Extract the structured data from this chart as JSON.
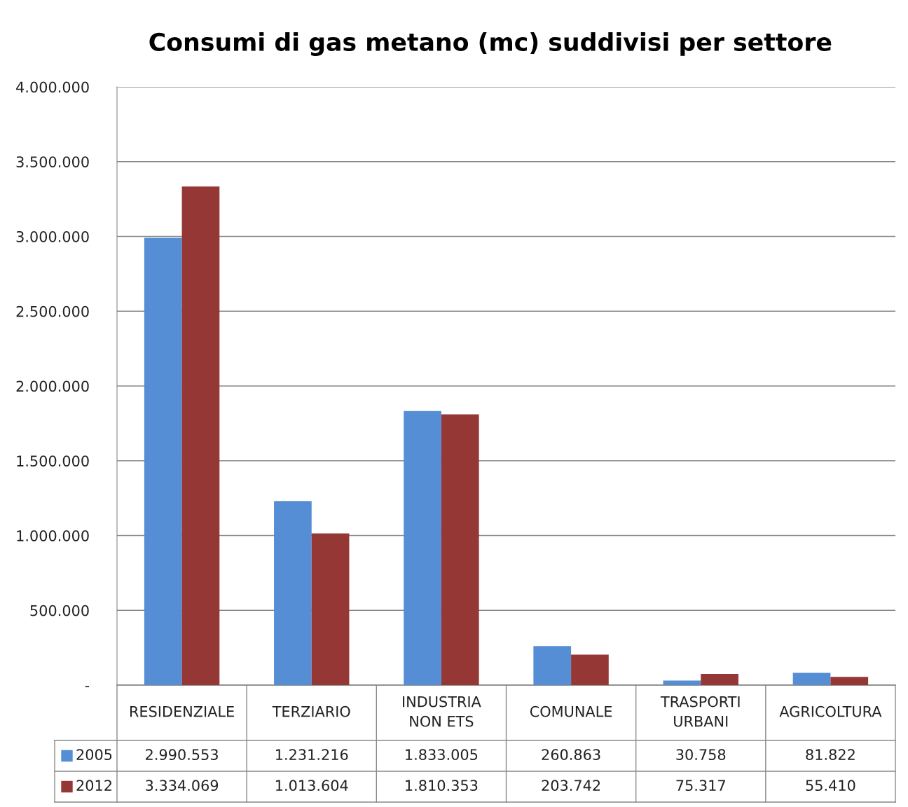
{
  "chart_data": {
    "type": "bar",
    "title": "Consumi di gas metano (mc) suddivisi per settore",
    "categories": [
      "RESIDENZIALE",
      "TERZIARIO",
      "INDUSTRIA\nNON ETS",
      "COMUNALE",
      "TRASPORTI\nURBANI",
      "AGRICOLTURA"
    ],
    "series": [
      {
        "name": "2005",
        "color": "#558ed5",
        "values": [
          2990553,
          1231216,
          1833005,
          260863,
          30758,
          81822
        ],
        "value_labels": [
          "2.990.553",
          "1.231.216",
          "1.833.005",
          "260.863",
          "30.758",
          "81.822"
        ]
      },
      {
        "name": "2012",
        "color": "#953735",
        "values": [
          3334069,
          1013604,
          1810353,
          203742,
          75317,
          55410
        ],
        "value_labels": [
          "3.334.069",
          "1.013.604",
          "1.810.353",
          "203.742",
          "75.317",
          "55.410"
        ]
      }
    ],
    "ylim": [
      0,
      4000000
    ],
    "yticks": [
      {
        "value": 0,
        "label": "-"
      },
      {
        "value": 500000,
        "label": "500.000"
      },
      {
        "value": 1000000,
        "label": "1.000.000"
      },
      {
        "value": 1500000,
        "label": "1.500.000"
      },
      {
        "value": 2000000,
        "label": "2.000.000"
      },
      {
        "value": 2500000,
        "label": "2.500.000"
      },
      {
        "value": 3000000,
        "label": "3.000.000"
      },
      {
        "value": 3500000,
        "label": "3.500.000"
      },
      {
        "value": 4000000,
        "label": "4.000.000"
      }
    ],
    "grid": "y",
    "legend": "bottom"
  }
}
